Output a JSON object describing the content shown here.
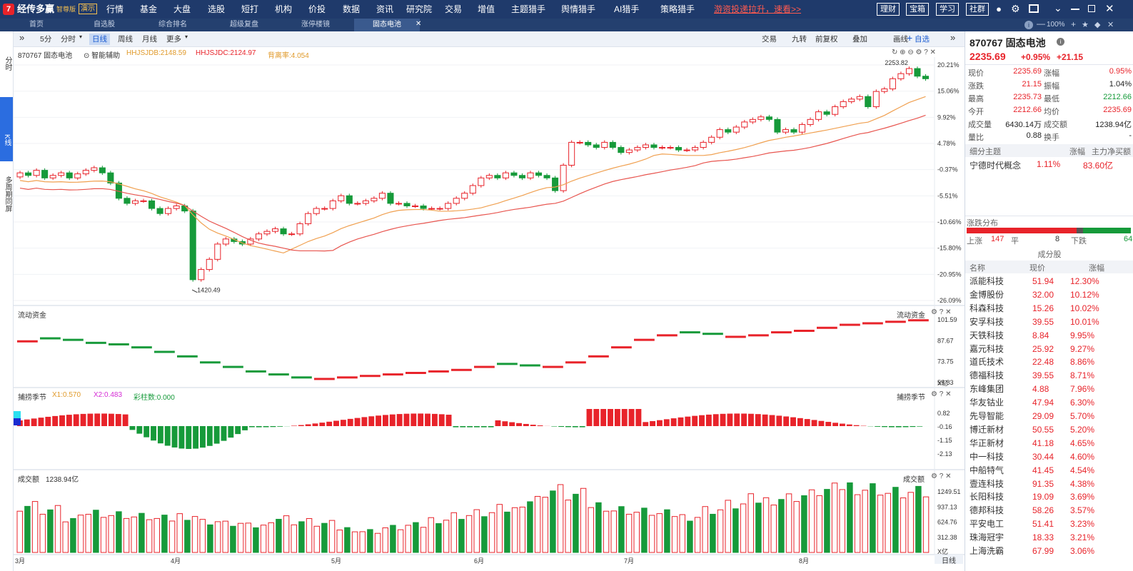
{
  "app": {
    "logo": "经传多赢",
    "edition": "智尊版",
    "demo": "演示"
  },
  "menu": [
    "行情",
    "基金",
    "大盘",
    "选股",
    "短打",
    "机构",
    "价投",
    "数据",
    "资讯",
    "研究院",
    "交易",
    "增值",
    "主题猎手",
    "舆情猎手",
    "AI猎手",
    "策略猎手"
  ],
  "promo": "游资投递拉升，速看>>",
  "top_buttons": [
    "理财",
    "宝箱",
    "学习",
    "社群"
  ],
  "zoom": "100%",
  "tabs": [
    "首页",
    "自选股",
    "综合排名",
    "超级复盘",
    "涨停楼镜",
    "固态电池"
  ],
  "leftnav": [
    "分时",
    "K线",
    "多周期同屏"
  ],
  "toolbar": {
    "periods": [
      "5分",
      "分时",
      "日线",
      "周线",
      "月线",
      "更多"
    ],
    "right": [
      "交易",
      "九转",
      "前复权",
      "叠加",
      "画线",
      "自选"
    ]
  },
  "main": {
    "title": "870767 固态电池",
    "assist": "智能辅助",
    "ind1": "HHJSJDB:2148.59",
    "ind2": "HHJSJDC:2124.97",
    "ind3": "背离率:4.054",
    "high_label": "2253.82",
    "low_label": "1420.49",
    "y_labels": [
      "20.21%",
      "15.06%",
      "9.92%",
      "4.78%",
      "-0.37%",
      "-5.51%",
      "-10.66%",
      "-15.80%",
      "-20.95%",
      "-26.09%"
    ],
    "flow_title": "流动资金",
    "flow_labels": [
      "101.59",
      "87.67",
      "73.75",
      "59.83"
    ],
    "flow_unit": "X亿",
    "cycle_title": "捕捞季节",
    "cycle_x1": "X1:0.570",
    "cycle_x2": "X2:0.483",
    "cycle_color": "彩柱数:0.000",
    "cycle_labels": [
      "0.82",
      "-0.16",
      "-1.15",
      "-2.13"
    ],
    "vol_title": "成交额",
    "vol_value": "1238.94亿",
    "vol_labels": [
      "1249.51",
      "937.13",
      "624.76",
      "312.38"
    ],
    "vol_unit": "X亿",
    "x_labels": [
      "3月",
      "4月",
      "5月",
      "6月",
      "7月",
      "8月"
    ],
    "period": "日线"
  },
  "quote": {
    "code": "870767",
    "name": "固态电池",
    "price": "2235.69",
    "pct": "+0.95%",
    "chg": "+21.15",
    "rows": [
      [
        "现价",
        "2235.69",
        "涨幅",
        "0.95%"
      ],
      [
        "涨跌",
        "21.15",
        "振幅",
        "1.04%"
      ],
      [
        "最高",
        "2235.73",
        "最低",
        "2212.66"
      ],
      [
        "今开",
        "2212.66",
        "均价",
        "2235.69"
      ],
      [
        "成交量",
        "6430.14万",
        "成交额",
        "1238.94亿"
      ],
      [
        "量比",
        "0.88",
        "换手",
        "-"
      ]
    ],
    "sub_header": [
      "细分主题",
      "涨幅",
      "主力净买额"
    ],
    "sub_row": [
      "宁德时代概念",
      "1.11%",
      "83.60亿"
    ],
    "dist_title": "涨跌分布",
    "up_label": "上涨",
    "up": "147",
    "flat_label": "平",
    "flat": "8",
    "down_label": "下跌",
    "down": "64",
    "comp_title": "成分股",
    "comp_header": [
      "名称",
      "现价",
      "涨幅"
    ],
    "stocks": [
      [
        "派能科技",
        "51.94",
        "12.30%"
      ],
      [
        "金博股份",
        "32.00",
        "10.12%"
      ],
      [
        "科森科技",
        "15.26",
        "10.02%"
      ],
      [
        "安孚科技",
        "39.55",
        "10.01%"
      ],
      [
        "天铁科技",
        "8.84",
        "9.95%"
      ],
      [
        "嘉元科技",
        "25.92",
        "9.27%"
      ],
      [
        "道氏技术",
        "22.48",
        "8.86%"
      ],
      [
        "德福科技",
        "39.55",
        "8.71%"
      ],
      [
        "东峰集团",
        "4.88",
        "7.96%"
      ],
      [
        "华友钴业",
        "47.94",
        "6.30%"
      ],
      [
        "先导智能",
        "29.09",
        "5.70%"
      ],
      [
        "博迁新材",
        "50.55",
        "5.20%"
      ],
      [
        "华正新材",
        "41.18",
        "4.65%"
      ],
      [
        "中一科技",
        "30.44",
        "4.60%"
      ],
      [
        "中船特气",
        "41.45",
        "4.54%"
      ],
      [
        "壹连科技",
        "91.35",
        "4.38%"
      ],
      [
        "长阳科技",
        "19.09",
        "3.69%"
      ],
      [
        "德邦科技",
        "58.26",
        "3.57%"
      ],
      [
        "平安电工",
        "51.41",
        "3.23%"
      ],
      [
        "珠海冠宇",
        "18.33",
        "3.21%"
      ],
      [
        "上海洗霸",
        "67.99",
        "3.06%"
      ]
    ]
  },
  "chart_data": {
    "type": "candlestick",
    "x_labels": [
      "3月",
      "4月",
      "5月",
      "6月",
      "7月",
      "8月"
    ],
    "closes_pct": [
      -1,
      -1.5,
      -0.5,
      -2,
      -1.5,
      -1,
      -2,
      -1.2,
      -0.5,
      0,
      -1,
      -3,
      -6,
      -7,
      -6.5,
      -6.5,
      -8,
      -9,
      -8,
      -7.5,
      -8.5,
      -22,
      -20,
      -18,
      -15,
      -14,
      -14.5,
      -15,
      -14,
      -13,
      -12.5,
      -12,
      -13,
      -13,
      -11,
      -9,
      -8,
      -8,
      -6.5,
      -5.5,
      -7,
      -7,
      -6.5,
      -6,
      -5,
      -7,
      -7,
      -7.5,
      -7.5,
      -8,
      -8,
      -8,
      -7,
      -6,
      -5,
      -3.5,
      -2,
      -1.5,
      -2,
      -1,
      -1.5,
      -2,
      -1,
      -1.5,
      -2,
      -4.5,
      0.5,
      5,
      5,
      4.5,
      4,
      5,
      4,
      3,
      3.5,
      4,
      4.5,
      4,
      4,
      4,
      3.5,
      3.5,
      4,
      5,
      6,
      7.5,
      7,
      8,
      9,
      9.5,
      10,
      9.5,
      7,
      7.5,
      7,
      8.5,
      9.5,
      11,
      10.5,
      12,
      13,
      13.5,
      14,
      12,
      15,
      15.5,
      17.5,
      18.5,
      19.5,
      18,
      17.5
    ],
    "flow_values": [
      87,
      89,
      88,
      86,
      85,
      83,
      80,
      77,
      73,
      70,
      67,
      65,
      63,
      62,
      63,
      64,
      65,
      66,
      67,
      68,
      70,
      72,
      71,
      70,
      73,
      77,
      83,
      88,
      91,
      93,
      92,
      90,
      91,
      93,
      94,
      96,
      98,
      99,
      100,
      101
    ],
    "volume_values": [
      1000,
      900,
      700,
      850,
      800,
      750,
      700,
      780,
      650,
      600,
      550,
      720,
      650,
      600,
      500,
      450,
      520,
      560,
      700,
      780,
      820,
      900,
      1100,
      1300,
      1200,
      1000,
      900,
      850,
      800,
      760,
      900,
      1000,
      1100,
      1150,
      1200,
      1300,
      1400,
      1350,
      1249,
      1238
    ]
  }
}
